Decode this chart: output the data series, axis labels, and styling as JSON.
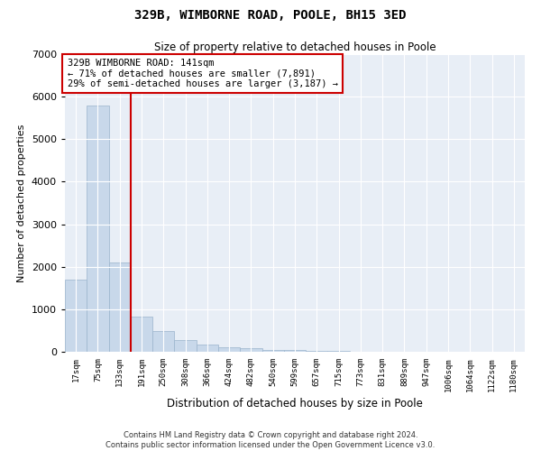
{
  "title": "329B, WIMBORNE ROAD, POOLE, BH15 3ED",
  "subtitle": "Size of property relative to detached houses in Poole",
  "xlabel": "Distribution of detached houses by size in Poole",
  "ylabel": "Number of detached properties",
  "footnote1": "Contains HM Land Registry data © Crown copyright and database right 2024.",
  "footnote2": "Contains public sector information licensed under the Open Government Licence v3.0.",
  "bar_color": "#c8d8ea",
  "bar_edge_color": "#9ab4cc",
  "background_color": "#e8eef6",
  "grid_color": "#ffffff",
  "vline_color": "#cc0000",
  "annotation_box_edge": "#cc0000",
  "annotation_text_line1": "329B WIMBORNE ROAD: 141sqm",
  "annotation_text_line2": "← 71% of detached houses are smaller (7,891)",
  "annotation_text_line3": "29% of semi-detached houses are larger (3,187) →",
  "vline_x": 2.5,
  "categories": [
    "17sqm",
    "75sqm",
    "133sqm",
    "191sqm",
    "250sqm",
    "308sqm",
    "366sqm",
    "424sqm",
    "482sqm",
    "540sqm",
    "599sqm",
    "657sqm",
    "715sqm",
    "773sqm",
    "831sqm",
    "889sqm",
    "947sqm",
    "1006sqm",
    "1064sqm",
    "1122sqm",
    "1180sqm"
  ],
  "values": [
    1700,
    5800,
    2100,
    820,
    480,
    270,
    170,
    110,
    80,
    50,
    35,
    20,
    12,
    8,
    5,
    3,
    2,
    1,
    1,
    0,
    0
  ],
  "ylim": [
    0,
    7000
  ],
  "yticks": [
    0,
    1000,
    2000,
    3000,
    4000,
    5000,
    6000,
    7000
  ]
}
